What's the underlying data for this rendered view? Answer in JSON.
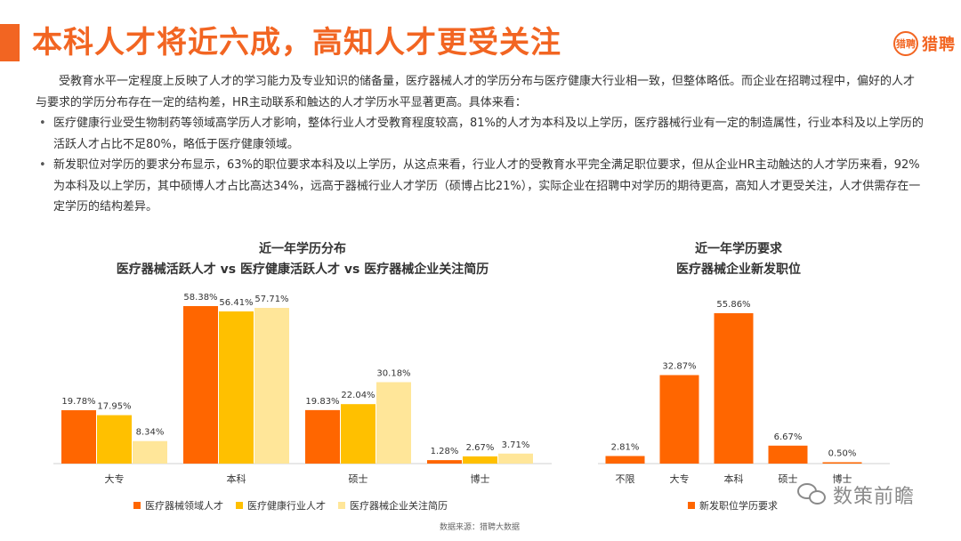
{
  "title": "本科人才将近六成，高知人才更受关注",
  "logo": {
    "mark": "猎聘",
    "text": "猎聘"
  },
  "intro": "受教育水平一定程度上反映了人才的学习能力及专业知识的储备量，医疗器械人才的学历分布与医疗健康大行业相一致，但整体略低。而企业在招聘过程中，偏好的人才与要求的学历分布存在一定的结构差，HR主动联系和触达的人才学历水平显著更高。具体来看：",
  "bullets": [
    "医疗健康行业受生物制药等领域高学历人才影响，整体行业人才受教育程度较高，81%的人才为本科及以上学历，医疗器械行业有一定的制造属性，行业本科及以上学历的活跃人才占比不足80%，略低于医疗健康领域。",
    "新发职位对学历的要求分布显示，63%的职位要求本科及以上学历，从这点来看，行业人才的受教育水平完全满足职位要求，但从企业HR主动触达的人才学历来看，92%为本科及以上学历，其中硕博人才占比高达34%，远高于器械行业人才学历（硕博占比21%），实际企业在招聘中对学历的期待更高，高知人才更受关注，人才供需存在一定学历的结构差异。"
  ],
  "colors": {
    "accent": "#F26522",
    "orange": "#FF6600",
    "gold": "#FFC000",
    "cream": "#FFE699",
    "axis": "#D0D0D0"
  },
  "chart_data": [
    {
      "type": "bar",
      "title": "近一年学历分布",
      "subtitle": "医疗器械活跃人才 vs 医疗健康活跃人才 vs 医疗器械企业关注简历",
      "categories": [
        "大专",
        "本科",
        "硕士",
        "博士"
      ],
      "series": [
        {
          "name": "医疗器械领域人才",
          "values": [
            19.78,
            58.38,
            19.83,
            1.28
          ],
          "labels": [
            "19.78%",
            "58.38%",
            "19.83%",
            "1.28%"
          ],
          "color": "#FF6600"
        },
        {
          "name": "医疗健康行业人才",
          "values": [
            17.95,
            56.41,
            22.04,
            2.67
          ],
          "labels": [
            "17.95%",
            "56.41%",
            "22.04%",
            "2.67%"
          ],
          "color": "#FFC000"
        },
        {
          "name": "医疗器械企业关注简历",
          "values": [
            8.34,
            57.71,
            30.18,
            3.71
          ],
          "labels": [
            "8.34%",
            "57.71%",
            "30.18%",
            "3.71%"
          ],
          "color": "#FFE699"
        }
      ],
      "ylim": [
        0,
        60
      ],
      "legend": "bottom",
      "grid": false
    },
    {
      "type": "bar",
      "title": "近一年学历要求",
      "subtitle": "医疗器械企业新发职位",
      "categories": [
        "不限",
        "大专",
        "本科",
        "硕士",
        "博士"
      ],
      "series": [
        {
          "name": "新发职位学历要求",
          "values": [
            2.81,
            32.87,
            55.86,
            6.67,
            0.5
          ],
          "labels": [
            "2.81%",
            "32.87%",
            "55.86%",
            "6.67%",
            "0.50%"
          ],
          "color": "#FF6600"
        }
      ],
      "ylim": [
        0,
        60
      ],
      "legend": "bottom",
      "grid": false
    }
  ],
  "source": "数据来源：猎聘大数据",
  "watermark": "数策前瞻"
}
